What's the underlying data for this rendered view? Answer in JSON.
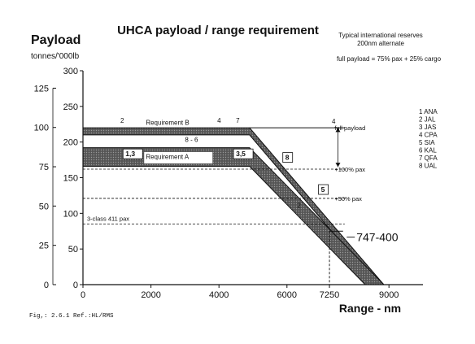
{
  "chart_data": {
    "type": "area",
    "title": "UHCA payload / range requirement",
    "ylabel": "Payload",
    "ylabel_units": "tonnes/'000lb",
    "xlabel": "Range - nm",
    "note_reserves_line1": "Typical international reserves",
    "note_reserves_line2": "200nm alternate",
    "note_payload": "full payload = 75% pax + 25% cargo",
    "caption": "Fig,: 2.6.1 Ref.:HL/RMS",
    "xlim": [
      0,
      10000
    ],
    "ylim_lb": [
      0,
      300
    ],
    "ylim_t": [
      0,
      136.08
    ],
    "x_ticks": [
      {
        "value": 0,
        "label": "0"
      },
      {
        "value": 2000,
        "label": "2000"
      },
      {
        "value": 4000,
        "label": "4000"
      },
      {
        "value": 6000,
        "label": "6000"
      },
      {
        "value": 7250,
        "label": "7250"
      },
      {
        "value": 9000,
        "label": "9000"
      }
    ],
    "y_ticks_lb": [
      {
        "value": 0,
        "label": "0"
      },
      {
        "value": 50,
        "label": "50"
      },
      {
        "value": 100,
        "label": "100"
      },
      {
        "value": 150,
        "label": "150"
      },
      {
        "value": 200,
        "label": "200"
      },
      {
        "value": 250,
        "label": "250"
      },
      {
        "value": 300,
        "label": "300"
      }
    ],
    "y_ticks_t": [
      {
        "value": 0,
        "label": "0"
      },
      {
        "value": 25,
        "label": "25"
      },
      {
        "value": 50,
        "label": "50"
      },
      {
        "value": 75,
        "label": "75"
      },
      {
        "value": 100,
        "label": "100"
      },
      {
        "value": 125,
        "label": "125"
      }
    ],
    "bands": [
      {
        "name": "Requirement B",
        "label": "Requirement B",
        "top": [
          [
            0,
            220
          ],
          [
            4900,
            220
          ],
          [
            8850,
            0
          ]
        ],
        "bottom": [
          [
            0,
            210
          ],
          [
            4900,
            210
          ],
          [
            8650,
            0
          ]
        ]
      },
      {
        "name": "Requirement A",
        "label": "Requirement A",
        "top": [
          [
            0,
            192
          ],
          [
            4900,
            192
          ],
          [
            8850,
            0
          ]
        ],
        "bottom": [
          [
            0,
            166
          ],
          [
            4900,
            166
          ],
          [
            8300,
            0
          ]
        ]
      }
    ],
    "payload_levels": [
      {
        "label": "full payload",
        "value": 220
      },
      {
        "label": "+100% pax",
        "value": 162
      },
      {
        "label": "+50% pax",
        "value": 121
      },
      {
        "label": "3-class 411 pax",
        "value": 85
      }
    ],
    "bracket_label": "4",
    "drop_line": {
      "x": 7250,
      "y": 75
    },
    "aircraft": {
      "label": "747-400",
      "x": 7900,
      "y": 61
    },
    "boxed_labels": [
      {
        "text": "1,3",
        "x": 1250,
        "y": 180
      },
      {
        "text": "3,5",
        "x": 4500,
        "y": 180
      },
      {
        "text": "8",
        "x": 5950,
        "y": 175
      },
      {
        "text": "5",
        "x": 7000,
        "y": 130
      }
    ],
    "point_labels": [
      {
        "text": "2",
        "x": 1100,
        "y": 227
      },
      {
        "text": "4",
        "x": 3950,
        "y": 227
      },
      {
        "text": "7",
        "x": 4500,
        "y": 227
      },
      {
        "text": "8 - 6",
        "x": 3000,
        "y": 200
      },
      {
        "text": "2",
        "x": 6300,
        "y": 108
      }
    ],
    "legend": [
      "1 ANA",
      "2 JAL",
      "3 JAS",
      "4 CPA",
      "5 SIA",
      "6 KAL",
      "7 QFA",
      "8 UAL"
    ]
  }
}
